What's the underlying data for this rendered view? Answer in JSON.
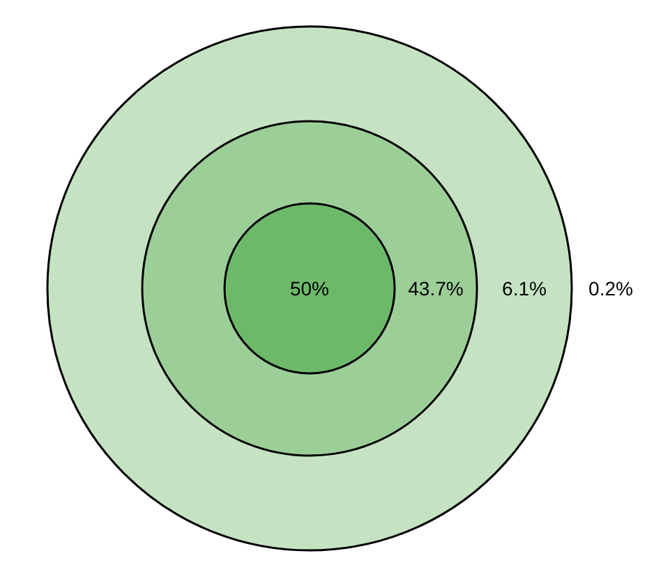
{
  "chart_data": {
    "type": "other",
    "categories": [
      null,
      null,
      null,
      null
    ],
    "values": [
      50,
      43.7,
      6.1,
      0.2
    ],
    "value_labels": [
      "50%",
      "43.7%",
      "6.1%",
      "0.2%"
    ],
    "colors": [
      "#6db96a",
      "#9ccf98",
      "#c5e3c2",
      null
    ]
  }
}
